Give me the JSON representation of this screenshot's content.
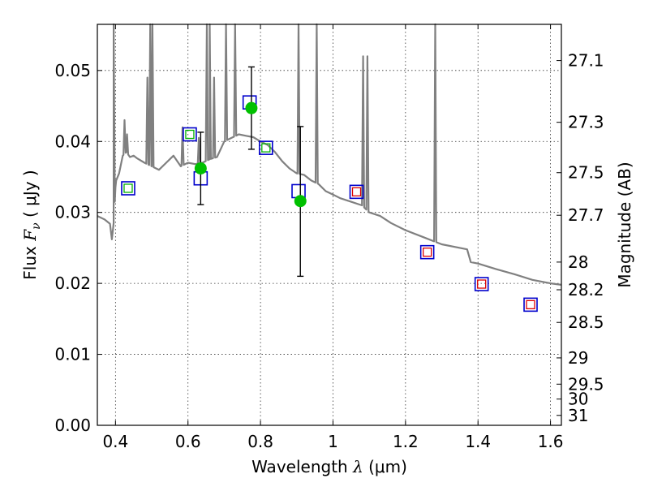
{
  "chart_data": {
    "type": "scatter",
    "title": "",
    "xlabel_prefix": "Wavelength  ",
    "xlabel_symbol": "λ",
    "xlabel_unit": " (μm)",
    "ylabel_prefix": "Flux  ",
    "ylabel_symbol": "F",
    "ylabel_sub": "ν",
    "ylabel_unit": "  ( μJy )",
    "y2label": "Magnitude (AB)",
    "xlim": [
      0.35,
      1.63
    ],
    "ylim": [
      0.0,
      0.0565
    ],
    "grid": true,
    "x_ticks": [
      0.4,
      0.6,
      0.8,
      1.0,
      1.2,
      1.4,
      1.6
    ],
    "x_tick_labels": [
      "0.4",
      "0.6",
      "0.8",
      "1",
      "1.2",
      "1.4",
      "1.6"
    ],
    "y_ticks": [
      0.0,
      0.01,
      0.02,
      0.03,
      0.04,
      0.05
    ],
    "y_tick_labels": [
      "0.00",
      "0.01",
      "0.02",
      "0.03",
      "0.04",
      "0.05"
    ],
    "y2_ticks": [
      {
        "label": "27.1",
        "flux": 0.0514
      },
      {
        "label": "27.3",
        "flux": 0.0427
      },
      {
        "label": "27.5",
        "flux": 0.0356
      },
      {
        "label": "27.7",
        "flux": 0.0296
      },
      {
        "label": "28",
        "flux": 0.023
      },
      {
        "label": "28.2",
        "flux": 0.0191
      },
      {
        "label": "28.5",
        "flux": 0.0145
      },
      {
        "label": "29",
        "flux": 0.0095
      },
      {
        "label": "29.5",
        "flux": 0.0058
      },
      {
        "label": "30",
        "flux": 0.0037
      },
      {
        "label": "31",
        "flux": 0.0014
      }
    ],
    "series": [
      {
        "name": "model spectrum",
        "kind": "line",
        "color": "#808080",
        "x": [
          0.35,
          0.37,
          0.385,
          0.39,
          0.395,
          0.398,
          0.4,
          0.402,
          0.41,
          0.42,
          0.43,
          0.44,
          0.45,
          0.46,
          0.48,
          0.5,
          0.52,
          0.54,
          0.56,
          0.58,
          0.6,
          0.62,
          0.64,
          0.66,
          0.68,
          0.7,
          0.72,
          0.74,
          0.76,
          0.78,
          0.8,
          0.82,
          0.84,
          0.86,
          0.88,
          0.9,
          0.92,
          0.94,
          0.96,
          0.98,
          1.0,
          1.02,
          1.05,
          1.08,
          1.1,
          1.13,
          1.16,
          1.2,
          1.25,
          1.3,
          1.35,
          1.37,
          1.38,
          1.4,
          1.45,
          1.5,
          1.55,
          1.6,
          1.63
        ],
        "y": [
          0.0295,
          0.029,
          0.0284,
          0.0262,
          0.0285,
          0.0315,
          0.0335,
          0.0345,
          0.0355,
          0.038,
          0.0385,
          0.0378,
          0.038,
          0.0376,
          0.037,
          0.0365,
          0.036,
          0.037,
          0.038,
          0.0365,
          0.037,
          0.0368,
          0.037,
          0.0375,
          0.0378,
          0.04,
          0.0405,
          0.041,
          0.0408,
          0.0406,
          0.04,
          0.0395,
          0.0385,
          0.0372,
          0.0362,
          0.0355,
          0.0353,
          0.0345,
          0.034,
          0.033,
          0.0325,
          0.032,
          0.0315,
          0.031,
          0.03,
          0.0295,
          0.0285,
          0.0275,
          0.0265,
          0.0255,
          0.025,
          0.0248,
          0.023,
          0.0228,
          0.022,
          0.0213,
          0.0205,
          0.02,
          0.0198
        ],
        "emission_lines": [
          {
            "x": 0.395,
            "peak": 0.0565
          },
          {
            "x": 0.425,
            "peak": 0.043
          },
          {
            "x": 0.432,
            "peak": 0.041
          },
          {
            "x": 0.488,
            "peak": 0.049
          },
          {
            "x": 0.496,
            "peak": 0.0565
          },
          {
            "x": 0.502,
            "peak": 0.0565
          },
          {
            "x": 0.585,
            "peak": 0.042
          },
          {
            "x": 0.63,
            "peak": 0.0405
          },
          {
            "x": 0.652,
            "peak": 0.0565
          },
          {
            "x": 0.66,
            "peak": 0.0565
          },
          {
            "x": 0.672,
            "peak": 0.049
          },
          {
            "x": 0.705,
            "peak": 0.0565
          },
          {
            "x": 0.73,
            "peak": 0.0565
          },
          {
            "x": 0.905,
            "peak": 0.0565
          },
          {
            "x": 0.955,
            "peak": 0.0565
          },
          {
            "x": 1.083,
            "peak": 0.052
          },
          {
            "x": 1.095,
            "peak": 0.052
          },
          {
            "x": 1.282,
            "peak": 0.0565
          }
        ]
      },
      {
        "name": "observed photometry",
        "kind": "points_with_errors",
        "color": "#00c000",
        "points": [
          {
            "x": 0.635,
            "y": 0.0362,
            "err_low": 0.0311,
            "err_high": 0.0413
          },
          {
            "x": 0.775,
            "y": 0.0447,
            "err_low": 0.0389,
            "err_high": 0.0505
          },
          {
            "x": 0.91,
            "y": 0.0316,
            "err_low": 0.021,
            "err_high": 0.0421
          }
        ]
      },
      {
        "name": "model photometry (blue squares)",
        "kind": "square_markers",
        "color": "#0000cc",
        "points": [
          {
            "x": 0.435,
            "y": 0.0334
          },
          {
            "x": 0.605,
            "y": 0.041
          },
          {
            "x": 0.635,
            "y": 0.0348
          },
          {
            "x": 0.77,
            "y": 0.0455
          },
          {
            "x": 0.815,
            "y": 0.0391
          },
          {
            "x": 0.905,
            "y": 0.033
          },
          {
            "x": 1.065,
            "y": 0.0329
          },
          {
            "x": 1.26,
            "y": 0.0244
          },
          {
            "x": 1.41,
            "y": 0.0199
          },
          {
            "x": 1.545,
            "y": 0.017
          }
        ]
      },
      {
        "name": "inner markers (green)",
        "kind": "inner_square_markers",
        "color": "#00b000",
        "points": [
          {
            "x": 0.435,
            "y": 0.0334
          },
          {
            "x": 0.605,
            "y": 0.041
          },
          {
            "x": 0.815,
            "y": 0.0391
          }
        ]
      },
      {
        "name": "inner markers (red)",
        "kind": "inner_square_markers",
        "color": "#dd0000",
        "points": [
          {
            "x": 1.065,
            "y": 0.0329
          },
          {
            "x": 1.26,
            "y": 0.0244
          },
          {
            "x": 1.41,
            "y": 0.0199
          },
          {
            "x": 1.545,
            "y": 0.017
          }
        ]
      }
    ]
  }
}
